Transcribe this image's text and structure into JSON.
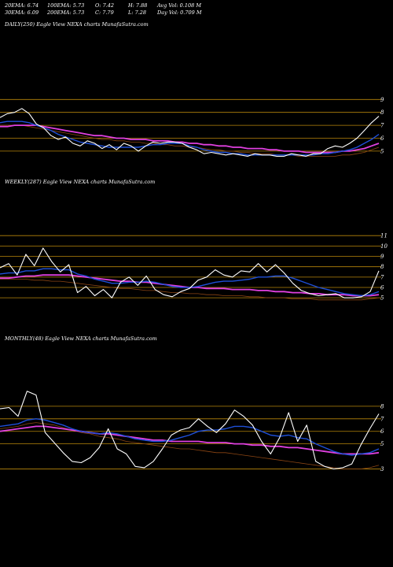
{
  "header": {
    "row1": [
      "20EMA: 6.74",
      "100EMA: 5.73",
      "O: 7.42",
      "H: 7.88",
      "Avg Vol: 0.108 M"
    ],
    "row2": [
      "30EMA: 6.09",
      "200EMA: 5.73",
      "C: 7.79",
      "L: 7.28",
      "Day Vol: 0.709 M"
    ]
  },
  "colors": {
    "background": "#000000",
    "price": "#ffffff",
    "ema_short": "#1e4fd8",
    "ema_long": "#e040e0",
    "ma_brown": "#8b4513",
    "gridline": "#b8860b"
  },
  "chart_data": [
    {
      "type": "line",
      "title": "DAILY(250) Eagle  View  NEXA charts MunafaSutra.com",
      "yticks": [
        5,
        6,
        7,
        8,
        9
      ],
      "ylim": [
        4.2,
        10.3
      ],
      "grid": true,
      "series": [
        {
          "role": "price",
          "values": [
            7.6,
            7.9,
            8.0,
            8.3,
            7.9,
            7.1,
            6.8,
            6.2,
            5.9,
            6.1,
            5.6,
            5.4,
            5.8,
            5.6,
            5.2,
            5.5,
            5.1,
            5.6,
            5.4,
            5.0,
            5.4,
            5.7,
            5.6,
            5.7,
            5.7,
            5.6,
            5.3,
            5.1,
            4.8,
            4.9,
            4.8,
            4.7,
            4.8,
            4.7,
            4.6,
            4.8,
            4.7,
            4.7,
            4.6,
            4.6,
            4.8,
            4.7,
            4.6,
            4.8,
            4.8,
            5.2,
            5.4,
            5.3,
            5.6,
            6.0,
            6.6,
            7.2,
            7.7
          ]
        },
        {
          "role": "ema_short",
          "values": [
            7.2,
            7.3,
            7.3,
            7.3,
            7.2,
            7.0,
            6.8,
            6.6,
            6.3,
            6.1,
            5.9,
            5.7,
            5.6,
            5.5,
            5.4,
            5.3,
            5.3,
            5.3,
            5.3,
            5.3,
            5.4,
            5.5,
            5.5,
            5.6,
            5.6,
            5.6,
            5.4,
            5.3,
            5.1,
            5.0,
            4.9,
            4.9,
            4.8,
            4.8,
            4.7,
            4.7,
            4.7,
            4.7,
            4.7,
            4.7,
            4.7,
            4.7,
            4.7,
            4.7,
            4.8,
            4.8,
            4.9,
            5.0,
            5.1,
            5.3,
            5.6,
            5.9,
            6.3
          ]
        },
        {
          "role": "ema_long",
          "values": [
            6.9,
            6.9,
            7.0,
            7.0,
            7.0,
            7.0,
            6.9,
            6.8,
            6.7,
            6.6,
            6.5,
            6.4,
            6.3,
            6.2,
            6.2,
            6.1,
            6.0,
            6.0,
            5.9,
            5.9,
            5.9,
            5.8,
            5.8,
            5.8,
            5.7,
            5.7,
            5.6,
            5.6,
            5.5,
            5.5,
            5.4,
            5.4,
            5.3,
            5.3,
            5.2,
            5.2,
            5.2,
            5.1,
            5.1,
            5.0,
            5.0,
            5.0,
            4.9,
            4.9,
            4.9,
            4.9,
            4.9,
            5.0,
            5.0,
            5.1,
            5.2,
            5.4,
            5.6
          ]
        },
        {
          "role": "ma_brown",
          "values": [
            7.0,
            7.0,
            7.0,
            7.0,
            6.9,
            6.8,
            6.7,
            6.6,
            6.5,
            6.4,
            6.3,
            6.2,
            6.1,
            6.0,
            5.9,
            5.9,
            5.8,
            5.8,
            5.7,
            5.7,
            5.6,
            5.6,
            5.5,
            5.5,
            5.4,
            5.4,
            5.3,
            5.3,
            5.2,
            5.1,
            5.1,
            5.0,
            5.0,
            4.9,
            4.9,
            4.8,
            4.8,
            4.8,
            4.7,
            4.7,
            4.7,
            4.6,
            4.6,
            4.6,
            4.6,
            4.6,
            4.6,
            4.7,
            4.7,
            4.8,
            4.9,
            5.1,
            5.3
          ]
        }
      ]
    },
    {
      "type": "line",
      "title": "WEEKLY(287) Eagle  View  NEXA charts MunafaSutra.com",
      "yticks": [
        5,
        6,
        7,
        8,
        9,
        10,
        11
      ],
      "ylim": [
        4.1,
        11.7
      ],
      "grid": true,
      "series": [
        {
          "role": "price",
          "values": [
            7.9,
            8.3,
            7.2,
            9.2,
            8.1,
            9.8,
            8.5,
            7.5,
            8.2,
            5.5,
            6.1,
            5.2,
            5.8,
            5.0,
            6.5,
            7.0,
            6.2,
            7.1,
            5.8,
            5.3,
            5.1,
            5.6,
            5.9,
            6.7,
            7.0,
            7.7,
            7.2,
            7.0,
            7.6,
            7.5,
            8.3,
            7.5,
            8.2,
            7.4,
            6.4,
            5.7,
            5.4,
            5.2,
            5.3,
            5.4,
            5.0,
            5.0,
            5.1,
            5.6,
            7.6
          ]
        },
        {
          "role": "ema_short",
          "values": [
            7.3,
            7.4,
            7.4,
            7.6,
            7.6,
            7.8,
            7.8,
            7.7,
            7.7,
            7.3,
            7.1,
            6.8,
            6.6,
            6.4,
            6.4,
            6.5,
            6.5,
            6.6,
            6.5,
            6.3,
            6.1,
            6.0,
            6.0,
            6.1,
            6.3,
            6.5,
            6.6,
            6.6,
            6.7,
            6.8,
            7.0,
            7.0,
            7.1,
            7.1,
            6.9,
            6.6,
            6.3,
            6.0,
            5.8,
            5.6,
            5.4,
            5.3,
            5.2,
            5.3,
            5.6
          ]
        },
        {
          "role": "ema_long",
          "values": [
            6.9,
            6.9,
            7.0,
            7.1,
            7.1,
            7.2,
            7.2,
            7.2,
            7.2,
            7.1,
            7.0,
            6.9,
            6.8,
            6.7,
            6.6,
            6.6,
            6.5,
            6.5,
            6.4,
            6.3,
            6.2,
            6.1,
            6.0,
            6.0,
            5.9,
            5.9,
            5.9,
            5.8,
            5.8,
            5.8,
            5.7,
            5.7,
            5.6,
            5.6,
            5.5,
            5.5,
            5.4,
            5.4,
            5.3,
            5.3,
            5.3,
            5.2,
            5.2,
            5.2,
            5.3
          ]
        },
        {
          "role": "ma_brown",
          "values": [
            6.8,
            6.8,
            6.8,
            6.8,
            6.7,
            6.7,
            6.6,
            6.6,
            6.5,
            6.4,
            6.3,
            6.2,
            6.1,
            6.0,
            5.9,
            5.9,
            5.8,
            5.7,
            5.7,
            5.6,
            5.5,
            5.5,
            5.4,
            5.4,
            5.3,
            5.3,
            5.2,
            5.2,
            5.2,
            5.1,
            5.1,
            5.0,
            5.0,
            5.0,
            4.9,
            4.9,
            4.9,
            4.8,
            4.8,
            4.8,
            4.8,
            4.8,
            4.8,
            4.9,
            5.0
          ]
        }
      ]
    },
    {
      "type": "line",
      "title": "MONTHLY(48) Eagle  View  NEXA charts MunafaSutra.com",
      "yticks": [
        3,
        5,
        6,
        7,
        8
      ],
      "ylim": [
        2.4,
        9.0
      ],
      "grid": true,
      "series": [
        {
          "role": "price",
          "values": [
            7.8,
            7.9,
            7.2,
            9.2,
            8.9,
            5.9,
            5.1,
            4.3,
            3.6,
            3.5,
            3.9,
            4.7,
            6.2,
            4.6,
            4.2,
            3.2,
            3.1,
            3.6,
            4.6,
            5.7,
            6.1,
            6.3,
            7.0,
            6.4,
            5.9,
            6.6,
            7.7,
            7.2,
            6.5,
            5.2,
            4.2,
            5.5,
            7.5,
            5.2,
            6.5,
            3.6,
            3.2,
            3.0,
            3.1,
            3.4,
            4.9,
            6.2,
            7.4
          ]
        },
        {
          "role": "ema_short",
          "values": [
            6.4,
            6.5,
            6.6,
            6.9,
            7.0,
            6.9,
            6.7,
            6.5,
            6.2,
            6.0,
            5.9,
            5.8,
            5.9,
            5.8,
            5.6,
            5.4,
            5.3,
            5.2,
            5.2,
            5.3,
            5.5,
            5.7,
            6.0,
            6.1,
            6.1,
            6.2,
            6.4,
            6.4,
            6.3,
            6.0,
            5.7,
            5.6,
            5.7,
            5.5,
            5.4,
            5.0,
            4.7,
            4.4,
            4.2,
            4.1,
            4.2,
            4.3,
            4.6
          ]
        },
        {
          "role": "ema_long",
          "values": [
            6.0,
            6.1,
            6.2,
            6.3,
            6.4,
            6.4,
            6.3,
            6.2,
            6.1,
            6.0,
            5.9,
            5.8,
            5.8,
            5.7,
            5.6,
            5.5,
            5.4,
            5.3,
            5.3,
            5.2,
            5.2,
            5.2,
            5.2,
            5.1,
            5.1,
            5.1,
            5.0,
            5.0,
            4.9,
            4.9,
            4.8,
            4.8,
            4.7,
            4.7,
            4.6,
            4.5,
            4.4,
            4.3,
            4.2,
            4.2,
            4.2,
            4.2,
            4.3
          ]
        },
        {
          "role": "ma_brown",
          "values": [
            6.2,
            6.3,
            6.4,
            6.6,
            6.7,
            6.6,
            6.5,
            6.3,
            6.1,
            5.9,
            5.8,
            5.6,
            5.5,
            5.4,
            5.2,
            5.1,
            5.0,
            4.9,
            4.8,
            4.7,
            4.6,
            4.6,
            4.5,
            4.4,
            4.3,
            4.3,
            4.2,
            4.1,
            4.0,
            3.9,
            3.8,
            3.7,
            3.6,
            3.5,
            3.4,
            3.3,
            3.2,
            3.1,
            3.0,
            3.0,
            3.0,
            3.1,
            3.3
          ]
        }
      ]
    }
  ]
}
